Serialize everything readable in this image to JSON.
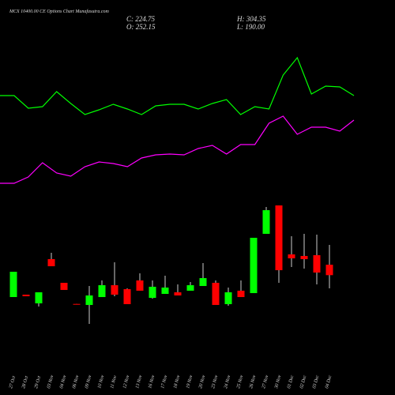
{
  "chart_data": {
    "type": "candlestick",
    "title": "MCX 10400.00 CE Options Chart Munafasutra.com",
    "info": [
      "C: 224.75",
      "H: 304.35",
      "O: 252.15",
      "L: 190.00"
    ],
    "categories": [
      "27 Oct",
      "28 Oct",
      "29 Oct",
      "03 Nov",
      "04 Nov",
      "06 Nov",
      "09 Nov",
      "10 Nov",
      "11 Nov",
      "12 Nov",
      "13 Nov",
      "16 Nov",
      "17 Nov",
      "18 Nov",
      "19 Nov",
      "20 Nov",
      "23 Nov",
      "24 Nov",
      "25 Nov",
      "26 Nov",
      "27 Nov",
      "30 Nov",
      "01 Dec",
      "02 Dec",
      "03 Dec",
      "04 Dec"
    ],
    "open": [
      167.1,
      173.4,
      150.5,
      266.9,
      204.6,
      149,
      146.3,
      167.1,
      198.3,
      187.9,
      210.8,
      165,
      175.4,
      179.6,
      183.8,
      196.2,
      204.6,
      148.4,
      183.8,
      177.5,
      333.5,
      408.3,
      279.4,
      275.2,
      277.3,
      252.15
    ],
    "high": [
      233.7,
      173.4,
      179.6,
      283.6,
      204.6,
      149,
      196.2,
      210.8,
      258.6,
      190,
      229.5,
      210.8,
      223.3,
      200.4,
      206.6,
      256.5,
      210.8,
      192.1,
      210.8,
      323.1,
      404.1,
      408.3,
      327.2,
      333.5,
      331.4,
      304.35
    ],
    "low": [
      167.1,
      169.2,
      142.2,
      248.2,
      185.8,
      148,
      96.4,
      167.1,
      169.2,
      148.4,
      183.8,
      162.9,
      175.4,
      171.3,
      183.8,
      196.2,
      146.3,
      144.3,
      167.1,
      177.5,
      333.5,
      204.6,
      246.1,
      242,
      200.4,
      190
    ],
    "close": [
      233.7,
      169.2,
      179.6,
      248.2,
      185.8,
      148,
      171.3,
      198.3,
      173.4,
      148.4,
      183.8,
      194.2,
      192.1,
      171.3,
      198.3,
      217,
      146.3,
      179.6,
      167.1,
      323.1,
      395.8,
      237.8,
      269,
      266.9,
      231.6,
      224.75
    ],
    "up_color": "#00ff00",
    "down_color": "#ff0000",
    "ylim": [
      80,
      420
    ],
    "lines": {
      "ylim": [
        0,
        100
      ],
      "series": [
        {
          "color": "#00ff00",
          "values": [
            69.5,
            69.5,
            61.5,
            62.5,
            72,
            64.5,
            57.5,
            60.5,
            64,
            61,
            57.5,
            63,
            64,
            64,
            61,
            64.5,
            67,
            57.5,
            62.5,
            61,
            82.5,
            93.5,
            70.5,
            75.5,
            75,
            69.5
          ]
        },
        {
          "color": "#ff00ff",
          "values": [
            14,
            14,
            18,
            27,
            20.5,
            18.5,
            24.5,
            27.5,
            26.5,
            24.5,
            30,
            32,
            32.5,
            32,
            36,
            38,
            32.5,
            38.5,
            38.5,
            52,
            56.5,
            45,
            49.5,
            49.5,
            47,
            54
          ]
        }
      ]
    }
  }
}
